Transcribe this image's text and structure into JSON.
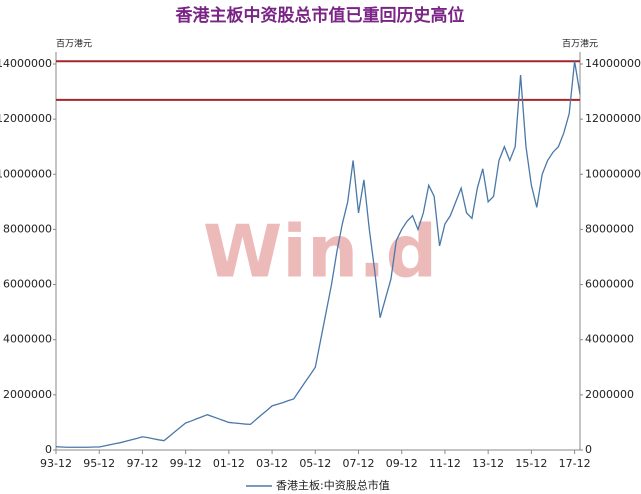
{
  "chart_data": {
    "type": "line",
    "title": "香港主板中资股总市值已重回历史高位",
    "y_label": "百万港元",
    "y2_label": "百万港元",
    "watermark": "Win.d",
    "categories": [
      "93-12",
      null,
      null,
      null,
      null,
      null,
      null,
      null,
      "95-12",
      null,
      null,
      null,
      null,
      null,
      null,
      null,
      "97-12",
      null,
      null,
      null,
      null,
      null,
      null,
      null,
      "99-12",
      null,
      null,
      null,
      null,
      null,
      null,
      null,
      "01-12",
      null,
      null,
      null,
      null,
      null,
      null,
      null,
      "03-12",
      null,
      null,
      null,
      null,
      null,
      null,
      null,
      "05-12",
      null,
      null,
      null,
      null,
      null,
      null,
      null,
      "07-12",
      null,
      null,
      null,
      null,
      null,
      null,
      null,
      "09-12",
      null,
      null,
      null,
      null,
      null,
      null,
      null,
      "11-12",
      null,
      null,
      null,
      null,
      null,
      null,
      null,
      "13-12",
      null,
      null,
      null,
      null,
      null,
      null,
      null,
      "15-12",
      null,
      null,
      null,
      null,
      null,
      null,
      null,
      "17-12",
      null
    ],
    "series": [
      {
        "name": "香港主板:中资股总市值",
        "color": "#4a78a8",
        "values": [
          120000,
          110000,
          100000,
          100000,
          100000,
          100000,
          100000,
          110000,
          110000,
          150000,
          190000,
          230000,
          270000,
          320000,
          370000,
          420000,
          480000,
          450000,
          410000,
          370000,
          340000,
          500000,
          660000,
          820000,
          980000,
          1050000,
          1130000,
          1200000,
          1280000,
          1210000,
          1140000,
          1070000,
          1000000,
          980000,
          960000,
          940000,
          930000,
          1100000,
          1270000,
          1430000,
          1600000,
          1660000,
          1720000,
          1790000,
          1850000,
          2140000,
          2430000,
          2710000,
          3000000,
          4000000,
          5000000,
          6000000,
          7200000,
          8200000,
          9000000,
          10500000,
          8600000,
          9800000,
          8000000,
          6500000,
          4800000,
          5500000,
          6200000,
          7600000,
          8000000,
          8300000,
          8500000,
          8000000,
          8600000,
          9600000,
          9200000,
          7400000,
          8200000,
          8500000,
          9000000,
          9500000,
          8600000,
          8400000,
          9500000,
          10200000,
          9000000,
          9200000,
          10500000,
          11000000,
          10500000,
          11000000,
          13600000,
          11000000,
          9600000,
          8800000,
          10000000,
          10500000,
          10800000,
          11000000,
          11500000,
          12200000,
          14100000,
          12900000
        ]
      }
    ],
    "ylim": [
      0,
      14000000
    ],
    "yticks": [
      0,
      2000000,
      4000000,
      6000000,
      8000000,
      10000000,
      12000000,
      14000000
    ],
    "y2lim": [
      0,
      14000000
    ],
    "y2ticks": [
      0,
      2000000,
      4000000,
      6000000,
      8000000,
      10000000,
      12000000,
      14000000
    ],
    "reference_lines": [
      {
        "value": 14100000,
        "color": "#a3262a"
      },
      {
        "value": 12700000,
        "color": "#a3262a"
      }
    ],
    "grid": false,
    "legend": "bottom"
  }
}
